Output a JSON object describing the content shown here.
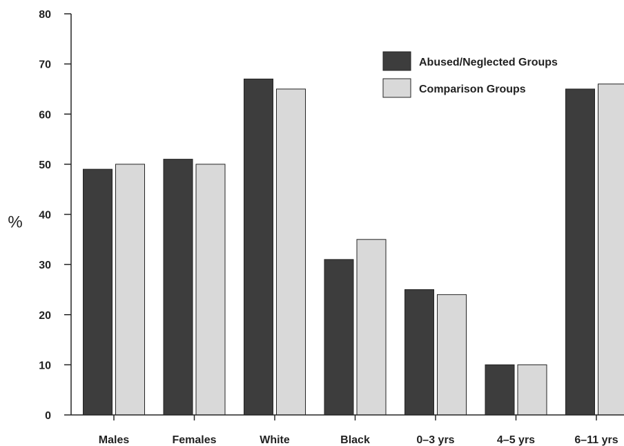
{
  "chart_data": {
    "type": "bar",
    "title": "",
    "xlabel": "",
    "ylabel": "%",
    "ylim": [
      0,
      80
    ],
    "yticks": [
      0,
      10,
      20,
      30,
      40,
      50,
      60,
      70,
      80
    ],
    "grid": false,
    "legend_position": "top-right",
    "categories": [
      "Males",
      "Females",
      "White",
      "Black",
      "0–3 yrs",
      "4–5 yrs",
      "6–11 yrs"
    ],
    "series": [
      {
        "name": "Abused/Neglected Groups",
        "values": [
          49,
          51,
          67,
          31,
          25,
          10,
          65
        ],
        "color": "#3d3d3d"
      },
      {
        "name": "Comparison Groups",
        "values": [
          50,
          50,
          65,
          35,
          24,
          10,
          66
        ],
        "color": "#d9d9d9"
      }
    ]
  }
}
